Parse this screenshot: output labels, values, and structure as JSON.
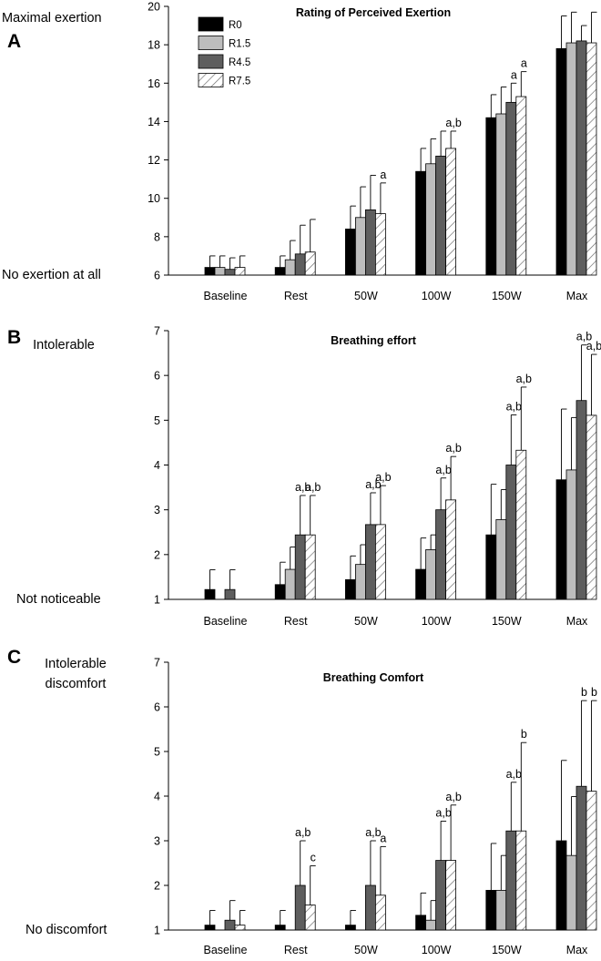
{
  "legend": {
    "entries": [
      {
        "name": "R0",
        "fill": "#000000",
        "hatch": false
      },
      {
        "name": "R1.5",
        "fill": "#bdbdbd",
        "hatch": false
      },
      {
        "name": "R4.5",
        "fill": "#5e5e5e",
        "hatch": false
      },
      {
        "name": "R7.5",
        "fill": "#ffffff",
        "hatch": true
      }
    ]
  },
  "chart_data": [
    {
      "type": "bar",
      "panel_letter": "A",
      "title": "Rating of Perceived Exertion",
      "top_label": "Maximal exertion",
      "bottom_label": "No exertion at all",
      "categories": [
        "Baseline",
        "Rest",
        "50W",
        "100W",
        "150W",
        "Max"
      ],
      "ylim": [
        6,
        20
      ],
      "yticks": [
        6,
        8,
        10,
        12,
        14,
        16,
        18,
        20
      ],
      "series": [
        {
          "name": "R0",
          "values": [
            6.4,
            6.4,
            8.4,
            11.4,
            14.2,
            17.8
          ],
          "errors": [
            0.6,
            0.6,
            1.2,
            1.2,
            1.2,
            1.7
          ]
        },
        {
          "name": "R1.5",
          "values": [
            6.4,
            6.8,
            9.0,
            11.8,
            14.4,
            18.1
          ],
          "errors": [
            0.6,
            1.0,
            1.6,
            1.3,
            1.4,
            1.6
          ]
        },
        {
          "name": "R4.5",
          "values": [
            6.3,
            7.1,
            9.4,
            12.2,
            15.0,
            18.2
          ],
          "errors": [
            0.6,
            1.5,
            1.8,
            1.3,
            1.0,
            0.8
          ]
        },
        {
          "name": "R7.5",
          "values": [
            6.4,
            7.2,
            9.2,
            12.6,
            15.3,
            18.1
          ],
          "errors": [
            0.6,
            1.7,
            1.6,
            0.9,
            1.3,
            1.6
          ]
        }
      ],
      "annotations": [
        {
          "category": 2,
          "series": 3,
          "text": "a"
        },
        {
          "category": 3,
          "series": 3,
          "text": "a,b"
        },
        {
          "category": 4,
          "series": 2,
          "text": "a"
        },
        {
          "category": 4,
          "series": 3,
          "text": "a"
        }
      ]
    },
    {
      "type": "bar",
      "panel_letter": "B",
      "title": "Breathing effort",
      "top_label": "Intolerable",
      "bottom_label": "Not noticeable",
      "categories": [
        "Baseline",
        "Rest",
        "50W",
        "100W",
        "150W",
        "Max"
      ],
      "ylim": [
        1,
        7
      ],
      "yticks": [
        1,
        2,
        3,
        4,
        5,
        6,
        7
      ],
      "series": [
        {
          "name": "R0",
          "values": [
            1.22,
            1.33,
            1.44,
            1.67,
            2.44,
            3.67
          ],
          "errors": [
            0.44,
            0.5,
            0.53,
            0.7,
            1.13,
            1.58
          ]
        },
        {
          "name": "R1.5",
          "values": [
            1.0,
            1.67,
            1.78,
            2.11,
            2.78,
            3.89
          ],
          "errors": [
            0.0,
            0.5,
            0.44,
            0.33,
            0.67,
            1.17
          ]
        },
        {
          "name": "R4.5",
          "values": [
            1.22,
            2.44,
            2.67,
            3.0,
            4.0,
            5.44
          ],
          "errors": [
            0.44,
            0.88,
            0.71,
            0.71,
            1.12,
            1.24
          ]
        },
        {
          "name": "R7.5",
          "values": [
            1.0,
            2.44,
            2.67,
            3.22,
            4.33,
            5.11
          ],
          "errors": [
            0.0,
            0.88,
            0.87,
            0.97,
            1.41,
            1.36
          ]
        }
      ],
      "annotations": [
        {
          "category": 1,
          "series": 2,
          "text": "a,b"
        },
        {
          "category": 1,
          "series": 3,
          "text": "a,b"
        },
        {
          "category": 2,
          "series": 2,
          "text": "a,b"
        },
        {
          "category": 2,
          "series": 3,
          "text": "a,b"
        },
        {
          "category": 3,
          "series": 2,
          "text": "a,b"
        },
        {
          "category": 3,
          "series": 3,
          "text": "a,b"
        },
        {
          "category": 4,
          "series": 2,
          "text": "a,b"
        },
        {
          "category": 4,
          "series": 3,
          "text": "a,b"
        },
        {
          "category": 5,
          "series": 2,
          "text": "a,b"
        },
        {
          "category": 5,
          "series": 3,
          "text": "a,b"
        }
      ]
    },
    {
      "type": "bar",
      "panel_letter": "C",
      "title": "Breathing Comfort",
      "top_label": "Intolerable discomfort",
      "top_label_lines": [
        "Intolerable",
        "discomfort"
      ],
      "bottom_label": "No discomfort",
      "categories": [
        "Baseline",
        "Rest",
        "50W",
        "100W",
        "150W",
        "Max"
      ],
      "ylim": [
        1,
        7
      ],
      "yticks": [
        1,
        2,
        3,
        4,
        5,
        6,
        7
      ],
      "series": [
        {
          "name": "R0",
          "values": [
            1.11,
            1.11,
            1.11,
            1.33,
            1.89,
            3.0
          ],
          "errors": [
            0.33,
            0.33,
            0.33,
            0.5,
            1.05,
            1.8
          ]
        },
        {
          "name": "R1.5",
          "values": [
            1.0,
            1.0,
            1.0,
            1.22,
            1.89,
            2.67
          ],
          "errors": [
            0.0,
            0.0,
            0.0,
            0.44,
            0.78,
            1.32
          ]
        },
        {
          "name": "R4.5",
          "values": [
            1.22,
            2.0,
            2.0,
            2.56,
            3.22,
            4.22
          ],
          "errors": [
            0.44,
            1.0,
            1.0,
            0.88,
            1.09,
            1.92
          ]
        },
        {
          "name": "R7.5",
          "values": [
            1.11,
            1.56,
            1.78,
            2.56,
            3.22,
            4.11
          ],
          "errors": [
            0.33,
            0.88,
            1.09,
            1.24,
            1.98,
            2.03
          ]
        }
      ],
      "annotations": [
        {
          "category": 1,
          "series": 2,
          "text": "a,b"
        },
        {
          "category": 1,
          "series": 3,
          "text": "c"
        },
        {
          "category": 2,
          "series": 2,
          "text": "a,b"
        },
        {
          "category": 2,
          "series": 3,
          "text": "a"
        },
        {
          "category": 3,
          "series": 2,
          "text": "a,b"
        },
        {
          "category": 3,
          "series": 3,
          "text": "a,b"
        },
        {
          "category": 4,
          "series": 2,
          "text": "a,b"
        },
        {
          "category": 4,
          "series": 3,
          "text": "b"
        },
        {
          "category": 5,
          "series": 2,
          "text": "b"
        },
        {
          "category": 5,
          "series": 3,
          "text": "b"
        }
      ]
    }
  ]
}
